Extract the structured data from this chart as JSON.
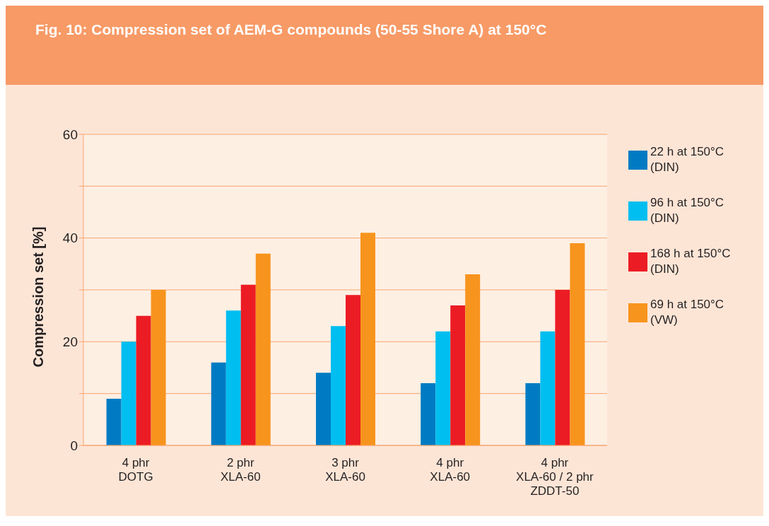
{
  "chart_data": {
    "type": "bar",
    "title": "Fig. 10:  Compression set of AEM-G compounds (50-55 Shore A) at 150°C",
    "ylabel": "Compression set [%]",
    "categories": [
      "4 phr\nDOTG",
      "2 phr\nXLA-60",
      "3 phr\nXLA-60",
      "4 phr\nXLA-60",
      "4 phr\nXLA-60 / 2 phr\nZDDT-50"
    ],
    "series": [
      {
        "name": "22 h at 150°C (DIN)",
        "color": "#007bc3",
        "values": [
          9,
          16,
          14,
          12,
          12
        ]
      },
      {
        "name": "96 h at 150°C (DIN)",
        "color": "#00bef0",
        "values": [
          20,
          26,
          23,
          22,
          22
        ]
      },
      {
        "name": "168 h at 150°C (DIN)",
        "color": "#ec1c24",
        "values": [
          25,
          31,
          29,
          27,
          30
        ]
      },
      {
        "name": "69 h at 150°C (VW)",
        "color": "#f7941d",
        "values": [
          30,
          37,
          41,
          33,
          39
        ]
      }
    ],
    "ylim": [
      0,
      60
    ],
    "yticks": [
      0,
      {
        "value": 10,
        "label": null
      },
      20,
      {
        "value": 30,
        "label": null
      },
      40,
      {
        "value": 50,
        "label": null
      },
      60
    ],
    "grid": "y",
    "legend": "right"
  }
}
